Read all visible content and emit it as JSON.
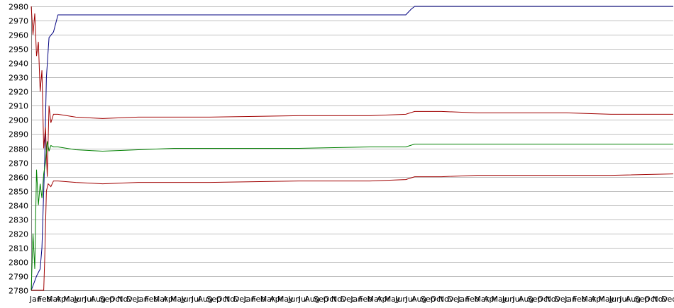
{
  "chart_data": {
    "type": "line",
    "title": "",
    "xlabel": "",
    "ylabel": "",
    "ylim": [
      2780,
      2980
    ],
    "yticks": [
      2780,
      2790,
      2800,
      2810,
      2820,
      2830,
      2840,
      2850,
      2860,
      2870,
      2880,
      2890,
      2900,
      2910,
      2920,
      2930,
      2940,
      2950,
      2960,
      2970,
      2980
    ],
    "grid": true,
    "legend": "none",
    "x_tick_labels": [
      "Jan",
      "Feb",
      "Mar",
      "Apr",
      "May",
      "Jun",
      "Jul",
      "Aug",
      "Sep",
      "Oct",
      "Nov",
      "Dec",
      "Jan",
      "Feb",
      "Mar",
      "Apr",
      "May",
      "Jun",
      "Jul",
      "Aug",
      "Sep",
      "Oct",
      "Nov",
      "Dec",
      "Jan",
      "Feb",
      "Mar",
      "Apr",
      "May",
      "Jun",
      "Jul",
      "Aug",
      "Sep",
      "Oct",
      "Nov",
      "Dec",
      "Jan",
      "Feb",
      "Mar",
      "Apr",
      "May",
      "Jun",
      "Jul",
      "Aug",
      "Sep",
      "Oct",
      "Nov",
      "Dec",
      "Jan",
      "Feb",
      "Mar",
      "Apr",
      "May",
      "Jun",
      "Jul",
      "Aug",
      "Sep",
      "Oct",
      "Nov",
      "Dec",
      "Jan",
      "Feb",
      "Mar",
      "Apr",
      "May",
      "Jun",
      "Jul",
      "Aug",
      "Sep",
      "Oct",
      "Nov",
      "Dec"
    ],
    "x_range": [
      0,
      72
    ],
    "series": [
      {
        "color": "#000080",
        "x": [
          0,
          0.3,
          0.6,
          1.0,
          1.2,
          1.5,
          1.7,
          2.0,
          2.5,
          3,
          5,
          10,
          20,
          30,
          40,
          42,
          42.3,
          42.6,
          43,
          50,
          60,
          72
        ],
        "values": [
          2780,
          2785,
          2790,
          2795,
          2810,
          2870,
          2930,
          2958,
          2962,
          2974,
          2974,
          2974,
          2974,
          2974,
          2974,
          2974,
          2976,
          2978,
          2980,
          2980,
          2980,
          2980
        ]
      },
      {
        "color": "#a00000",
        "x": [
          0,
          0.2,
          0.4,
          0.6,
          0.8,
          1.0,
          1.2,
          1.4,
          1.6,
          1.8,
          2.0,
          2.2,
          2.5,
          3,
          4,
          5,
          8,
          12,
          20,
          30,
          38,
          42,
          43,
          46,
          50,
          55,
          60,
          65,
          72
        ],
        "values": [
          2980,
          2960,
          2975,
          2945,
          2955,
          2920,
          2935,
          2880,
          2895,
          2860,
          2910,
          2898,
          2904,
          2904,
          2903,
          2902,
          2901,
          2902,
          2902,
          2903,
          2903,
          2904,
          2906,
          2906,
          2905,
          2905,
          2905,
          2904,
          2904
        ]
      },
      {
        "color": "#008000",
        "x": [
          0,
          0.2,
          0.4,
          0.6,
          0.8,
          1.0,
          1.2,
          1.4,
          1.6,
          1.8,
          2.0,
          2.2,
          2.5,
          3,
          4,
          5,
          8,
          12,
          16,
          20,
          30,
          38,
          42,
          43,
          46,
          50,
          55,
          60,
          65,
          72
        ],
        "values": [
          2780,
          2820,
          2795,
          2865,
          2840,
          2855,
          2845,
          2862,
          2870,
          2885,
          2878,
          2882,
          2881,
          2881,
          2880,
          2879,
          2878,
          2879,
          2880,
          2880,
          2880,
          2881,
          2881,
          2883,
          2883,
          2883,
          2883,
          2883,
          2883,
          2883
        ]
      },
      {
        "color": "#a00000",
        "x": [
          0,
          0.5,
          1.0,
          1.4,
          1.5,
          1.7,
          1.9,
          2.2,
          2.5,
          3,
          5,
          8,
          12,
          20,
          30,
          38,
          42,
          43,
          46,
          50,
          55,
          60,
          65,
          72
        ],
        "values": [
          2780,
          2780,
          2780,
          2780,
          2800,
          2850,
          2855,
          2853,
          2857,
          2857,
          2856,
          2855,
          2856,
          2856,
          2857,
          2857,
          2858,
          2860,
          2860,
          2861,
          2861,
          2861,
          2861,
          2862
        ]
      }
    ]
  }
}
